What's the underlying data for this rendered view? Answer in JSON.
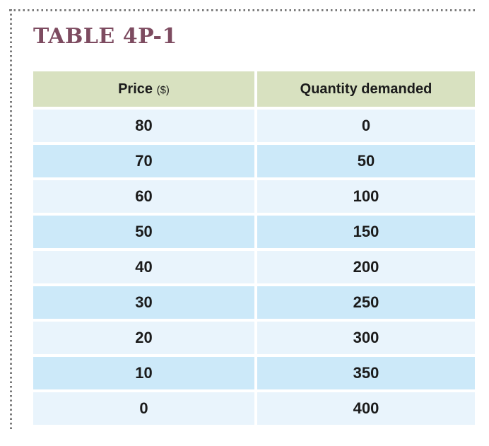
{
  "page": {
    "title": "TABLE 4P-1"
  },
  "table": {
    "col1": {
      "label": "Price",
      "unit": "($)"
    },
    "col2": {
      "label": "Quantity demanded"
    }
  },
  "colors": {
    "title_maroon": "#7d4b60",
    "header_green": "#d8e1c0",
    "row_light_blue": "#e9f4fc",
    "row_dark_blue": "#cce9f9",
    "dotted_border_gray": "#7b7b7b",
    "text": "#1b1b1b"
  },
  "chart_data": {
    "type": "table",
    "title": "TABLE 4P-1",
    "columns": [
      "Price ($)",
      "Quantity demanded"
    ],
    "rows": [
      [
        80,
        0
      ],
      [
        70,
        50
      ],
      [
        60,
        100
      ],
      [
        50,
        150
      ],
      [
        40,
        200
      ],
      [
        30,
        250
      ],
      [
        20,
        300
      ],
      [
        10,
        350
      ],
      [
        0,
        400
      ]
    ]
  }
}
